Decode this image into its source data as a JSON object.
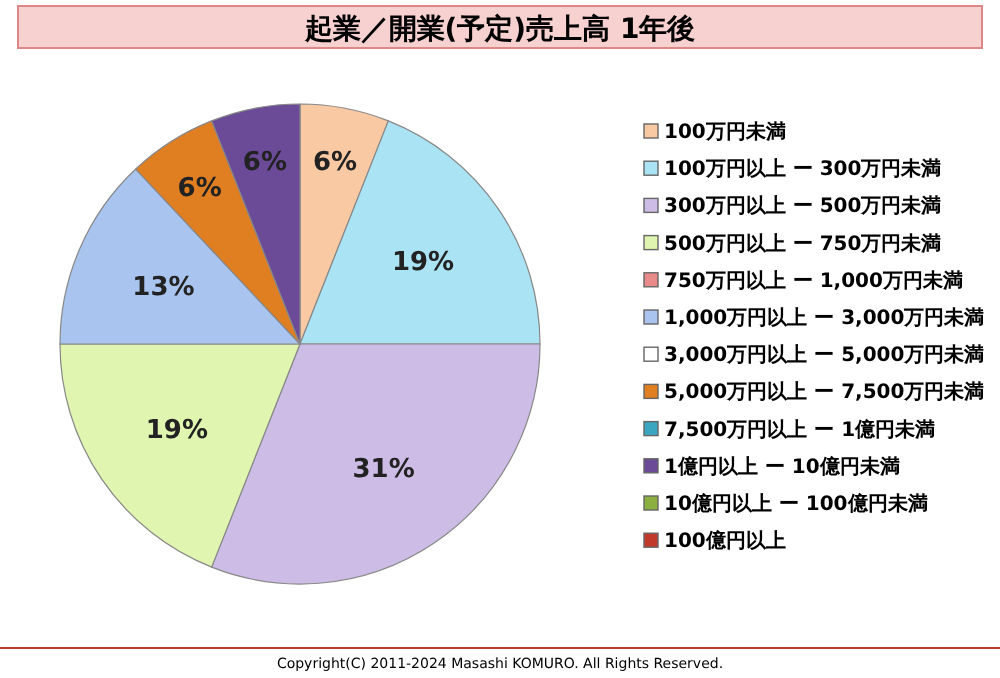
{
  "chart_data": {
    "type": "pie",
    "title": "起業／開業(予定)売上高 1年後",
    "categories": [
      "100万円未満",
      "100万円以上 ー 300万円未満",
      "300万円以上 ー 500万円未満",
      "500万円以上 ー 750万円未満",
      "750万円以上 ー 1,000万円未満",
      "1,000万円以上 ー 3,000万円未満",
      "3,000万円以上 ー 5,000万円未満",
      "5,000万円以上 ー 7,500万円未満",
      "7,500万円以上 ー 1億円未満",
      "1億円以上 ー 10億円未満",
      "10億円以上 ー 100億円未満",
      "100億円以上"
    ],
    "values": [
      6,
      19,
      31,
      19,
      0,
      13,
      0,
      6,
      0,
      6,
      0,
      0
    ],
    "value_labels": [
      "6%",
      "19%",
      "31%",
      "19%",
      null,
      "13%",
      null,
      "6%",
      null,
      "6%",
      null,
      null
    ],
    "colors": [
      "#f9c9a4",
      "#a9e3f4",
      "#cdbde6",
      "#dff5b0",
      "#e88a8a",
      "#a9c4ee",
      "#ffffff",
      "#e07e22",
      "#3aa6bf",
      "#6b4a98",
      "#8cb040",
      "#c0392b"
    ],
    "legend": "right",
    "annotations": [
      "Copyright(C) 2011-2024 Masashi KOMURO. All Rights Reserved."
    ]
  }
}
